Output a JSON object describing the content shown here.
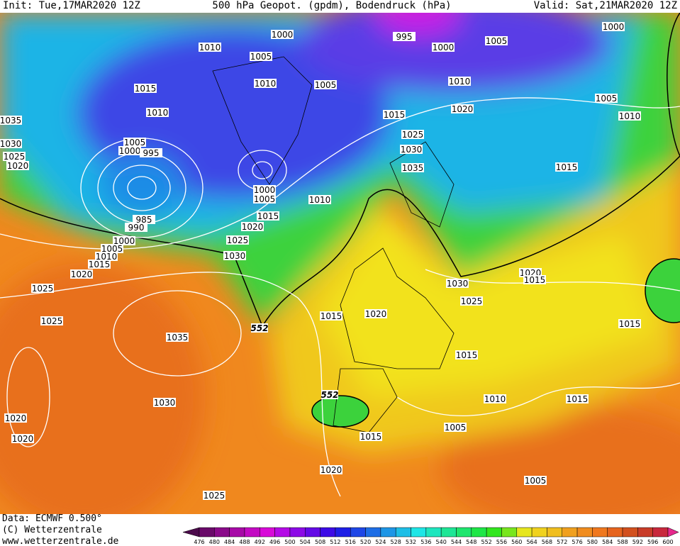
{
  "header": {
    "init": "Init: Tue,17MAR2020 12Z",
    "title": "500 hPa Geopot. (gpdm), Bodendruck (hPa)",
    "valid": "Valid: Sat,21MAR2020 12Z"
  },
  "footer": {
    "lines": [
      "Data: ECMWF  0.500°",
      "(C) Wetterzentrale",
      "www.wetterzentrale.de"
    ]
  },
  "map": {
    "isobar_labels": [
      1000,
      995,
      1000,
      1005,
      1000,
      1010,
      1005,
      1010,
      1005,
      1010,
      1015,
      1010,
      1015,
      1020,
      1005,
      1010,
      1035,
      1005,
      1000,
      995,
      1030,
      1025,
      1020,
      1025,
      1030,
      1035,
      1015,
      1000,
      1005,
      1010,
      985,
      990,
      1015,
      1020,
      1025,
      1000,
      1005,
      1010,
      1015,
      1020,
      1030,
      1020,
      1015,
      1030,
      1025,
      1025,
      1015,
      1020,
      1025,
      1035,
      1015,
      1015,
      1010,
      1030,
      1015,
      1020,
      1005,
      1020,
      1015,
      1020,
      1005,
      1025
    ],
    "contour_labels": [
      552,
      552
    ]
  },
  "colorbar": {
    "levels": [
      476,
      480,
      484,
      488,
      492,
      496,
      500,
      504,
      508,
      512,
      516,
      520,
      524,
      528,
      532,
      536,
      540,
      544,
      548,
      552,
      556,
      560,
      564,
      568,
      572,
      576,
      580,
      584,
      588,
      592,
      596,
      600
    ],
    "colors": [
      "#4b0a4b",
      "#6a0a6a",
      "#8a0a8a",
      "#a70aa7",
      "#c30ac3",
      "#d80ad8",
      "#b40ae6",
      "#8c0ae6",
      "#640ae6",
      "#3c0ae6",
      "#1e1ee6",
      "#1e46e6",
      "#1e6ee6",
      "#1e96e6",
      "#1ebee6",
      "#1ee6e6",
      "#1ee6be",
      "#1ee696",
      "#1ee66e",
      "#1ee646",
      "#32e61e",
      "#78e61e",
      "#e6e61e",
      "#f0d21e",
      "#f0be1e",
      "#f0a01e",
      "#f08c1e",
      "#f0781e",
      "#e6641e",
      "#d2501e",
      "#c83c28",
      "#c8283c",
      "#e6288c"
    ]
  }
}
